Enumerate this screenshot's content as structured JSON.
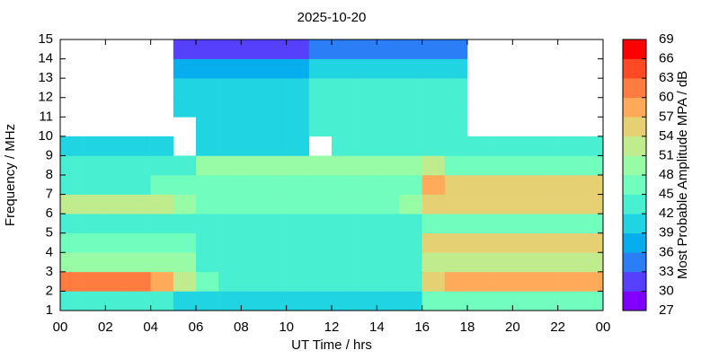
{
  "chart_data": {
    "type": "heatmap",
    "title": "2025-10-20",
    "xlabel": "UT Time / hrs",
    "ylabel": "Frequency / MHz",
    "x": [
      0.5,
      1.5,
      2.5,
      3.5,
      4.5,
      5.5,
      6.5,
      7.5,
      8.5,
      9.5,
      10.5,
      11.5,
      12.5,
      13.5,
      14.5,
      15.5,
      16.5,
      17.5,
      18.5,
      19.5,
      20.5,
      21.5,
      22.5,
      23.5
    ],
    "y": [
      1.5,
      2.5,
      3.5,
      4.5,
      5.5,
      6.5,
      7.5,
      8.5,
      9.5,
      10.5,
      11.5,
      12.5,
      13.5,
      14.5
    ],
    "z": [
      [
        42,
        42,
        42,
        42,
        42,
        39,
        39,
        39,
        39,
        39,
        39,
        39,
        39,
        39,
        39,
        39,
        45,
        45,
        45,
        45,
        45,
        45,
        45,
        45
      ],
      [
        60,
        60,
        60,
        60,
        57,
        51,
        45,
        42,
        42,
        42,
        42,
        42,
        42,
        42,
        42,
        42,
        54,
        57,
        57,
        57,
        57,
        57,
        57,
        57
      ],
      [
        48,
        48,
        48,
        48,
        48,
        48,
        42,
        42,
        42,
        42,
        42,
        42,
        42,
        42,
        42,
        42,
        51,
        51,
        51,
        51,
        51,
        51,
        51,
        51
      ],
      [
        45,
        45,
        45,
        45,
        45,
        45,
        42,
        42,
        42,
        42,
        42,
        42,
        42,
        42,
        42,
        42,
        54,
        54,
        54,
        54,
        54,
        54,
        54,
        54
      ],
      [
        42,
        42,
        42,
        42,
        42,
        42,
        42,
        42,
        42,
        42,
        42,
        42,
        42,
        42,
        42,
        42,
        45,
        45,
        45,
        45,
        45,
        45,
        45,
        45
      ],
      [
        51,
        51,
        51,
        51,
        51,
        48,
        45,
        45,
        45,
        45,
        45,
        45,
        45,
        45,
        45,
        48,
        54,
        54,
        54,
        54,
        54,
        54,
        54,
        54
      ],
      [
        42,
        42,
        42,
        42,
        45,
        45,
        45,
        45,
        45,
        45,
        45,
        45,
        45,
        45,
        45,
        45,
        57,
        54,
        54,
        54,
        54,
        54,
        54,
        54
      ],
      [
        42,
        42,
        42,
        42,
        42,
        42,
        48,
        48,
        48,
        48,
        48,
        48,
        48,
        48,
        48,
        48,
        51,
        45,
        45,
        45,
        45,
        45,
        45,
        45
      ],
      [
        39,
        39,
        39,
        39,
        39,
        null,
        39,
        39,
        39,
        39,
        39,
        null,
        42,
        42,
        42,
        42,
        42,
        42,
        42,
        42,
        42,
        42,
        42,
        42
      ],
      [
        null,
        null,
        null,
        null,
        null,
        null,
        39,
        39,
        39,
        39,
        39,
        42,
        42,
        42,
        42,
        42,
        42,
        42,
        null,
        null,
        null,
        null,
        null,
        null
      ],
      [
        null,
        null,
        null,
        null,
        null,
        39,
        39,
        39,
        39,
        39,
        39,
        42,
        42,
        42,
        42,
        42,
        42,
        42,
        null,
        null,
        null,
        null,
        null,
        null
      ],
      [
        null,
        null,
        null,
        null,
        null,
        39,
        39,
        39,
        39,
        39,
        39,
        42,
        42,
        42,
        42,
        42,
        42,
        42,
        null,
        null,
        null,
        null,
        null,
        null
      ],
      [
        null,
        null,
        null,
        null,
        null,
        36,
        36,
        36,
        36,
        36,
        36,
        39,
        39,
        39,
        39,
        39,
        39,
        39,
        null,
        null,
        null,
        null,
        null,
        null
      ],
      [
        null,
        null,
        null,
        null,
        null,
        30,
        30,
        30,
        30,
        30,
        30,
        33,
        33,
        33,
        33,
        33,
        33,
        33,
        null,
        null,
        null,
        null,
        null,
        null
      ]
    ],
    "xlim": [
      0,
      24
    ],
    "xticks": [
      {
        "value": 0,
        "label": "00"
      },
      {
        "value": 2,
        "label": "02"
      },
      {
        "value": 4,
        "label": "04"
      },
      {
        "value": 6,
        "label": "06"
      },
      {
        "value": 8,
        "label": "08"
      },
      10,
      12,
      14,
      16,
      18,
      20,
      22,
      {
        "value": 24,
        "label": "00"
      }
    ],
    "ylim": [
      1,
      15
    ],
    "yticks": [
      1,
      2,
      3,
      4,
      5,
      6,
      7,
      8,
      9,
      10,
      11,
      12,
      13,
      14,
      15
    ],
    "colorbar": {
      "label": "Most Probable Amplitude MPA / dB",
      "zlim": [
        27,
        69
      ],
      "ticks": [
        27,
        30,
        33,
        36,
        39,
        42,
        45,
        48,
        51,
        54,
        57,
        60,
        63,
        66,
        69
      ],
      "colors": [
        "#8000ff",
        "#5640fc",
        "#2c7ef7",
        "#06aeed",
        "#20d5e1",
        "#48f0d1",
        "#70fdbd",
        "#98fba6",
        "#c0ec8d",
        "#e6d074",
        "#ffaa5a",
        "#ff7c40",
        "#ff4a25",
        "#ff0000"
      ]
    }
  }
}
